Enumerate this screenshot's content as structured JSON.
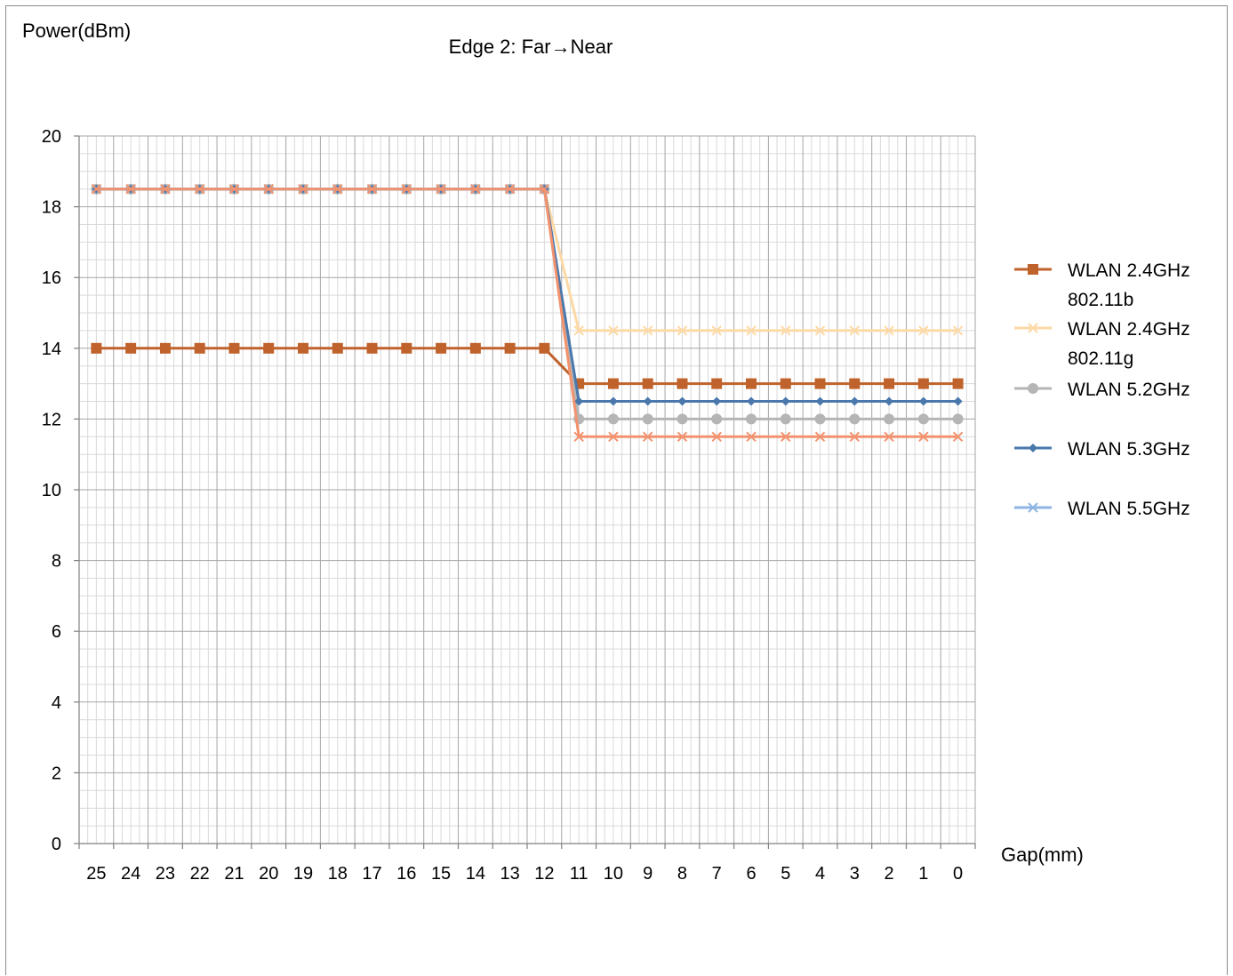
{
  "chart_data": {
    "type": "line",
    "title": "Edge 2: Far→Near",
    "ylabel": "Power(dBm)",
    "xlabel": "Gap(mm)",
    "ylim": [
      0,
      20
    ],
    "yticks": [
      0,
      2,
      4,
      6,
      8,
      10,
      12,
      14,
      16,
      18,
      20
    ],
    "grid": true,
    "legend_position": "right",
    "categories": [
      "25",
      "24",
      "23",
      "22",
      "21",
      "20",
      "19",
      "18",
      "17",
      "16",
      "15",
      "14",
      "13",
      "12",
      "11",
      "10",
      "9",
      "8",
      "7",
      "6",
      "5",
      "4",
      "3",
      "2",
      "1",
      "0"
    ],
    "series": [
      {
        "name_lines": [
          "WLAN 2.4GHz",
          "802.11b"
        ],
        "color": "#c0622b",
        "marker": "square",
        "values": [
          14,
          14,
          14,
          14,
          14,
          14,
          14,
          14,
          14,
          14,
          14,
          14,
          14,
          14,
          13,
          13,
          13,
          13,
          13,
          13,
          13,
          13,
          13,
          13,
          13,
          13
        ]
      },
      {
        "name_lines": [
          "WLAN 2.4GHz",
          "802.11g"
        ],
        "color": "#fcd9a5",
        "marker": "x",
        "values": [
          18.5,
          18.5,
          18.5,
          18.5,
          18.5,
          18.5,
          18.5,
          18.5,
          18.5,
          18.5,
          18.5,
          18.5,
          18.5,
          18.5,
          14.5,
          14.5,
          14.5,
          14.5,
          14.5,
          14.5,
          14.5,
          14.5,
          14.5,
          14.5,
          14.5,
          14.5
        ]
      },
      {
        "name_lines": [
          "WLAN 5.2GHz"
        ],
        "color": "#b5b5b5",
        "marker": "circle",
        "values": [
          18.5,
          18.5,
          18.5,
          18.5,
          18.5,
          18.5,
          18.5,
          18.5,
          18.5,
          18.5,
          18.5,
          18.5,
          18.5,
          18.5,
          12,
          12,
          12,
          12,
          12,
          12,
          12,
          12,
          12,
          12,
          12,
          12
        ]
      },
      {
        "name_lines": [
          "WLAN 5.3GHz"
        ],
        "color": "#4a78ac",
        "marker": "diamond",
        "values": [
          18.5,
          18.5,
          18.5,
          18.5,
          18.5,
          18.5,
          18.5,
          18.5,
          18.5,
          18.5,
          18.5,
          18.5,
          18.5,
          18.5,
          12.5,
          12.5,
          12.5,
          12.5,
          12.5,
          12.5,
          12.5,
          12.5,
          12.5,
          12.5,
          12.5,
          12.5
        ]
      },
      {
        "name_lines": [
          "WLAN 5.5GHz"
        ],
        "color": "#8eb4e3",
        "marker": "x",
        "values": [
          18.5,
          18.5,
          18.5,
          18.5,
          18.5,
          18.5,
          18.5,
          18.5,
          18.5,
          18.5,
          18.5,
          18.5,
          18.5,
          18.5,
          null,
          null,
          null,
          null,
          null,
          null,
          null,
          null,
          null,
          null,
          null,
          null
        ]
      },
      {
        "name_lines": [],
        "color": "#f2926e",
        "marker": "x",
        "values": [
          18.5,
          18.5,
          18.5,
          18.5,
          18.5,
          18.5,
          18.5,
          18.5,
          18.5,
          18.5,
          18.5,
          18.5,
          18.5,
          18.5,
          11.5,
          11.5,
          11.5,
          11.5,
          11.5,
          11.5,
          11.5,
          11.5,
          11.5,
          11.5,
          11.5,
          11.5
        ]
      }
    ]
  }
}
